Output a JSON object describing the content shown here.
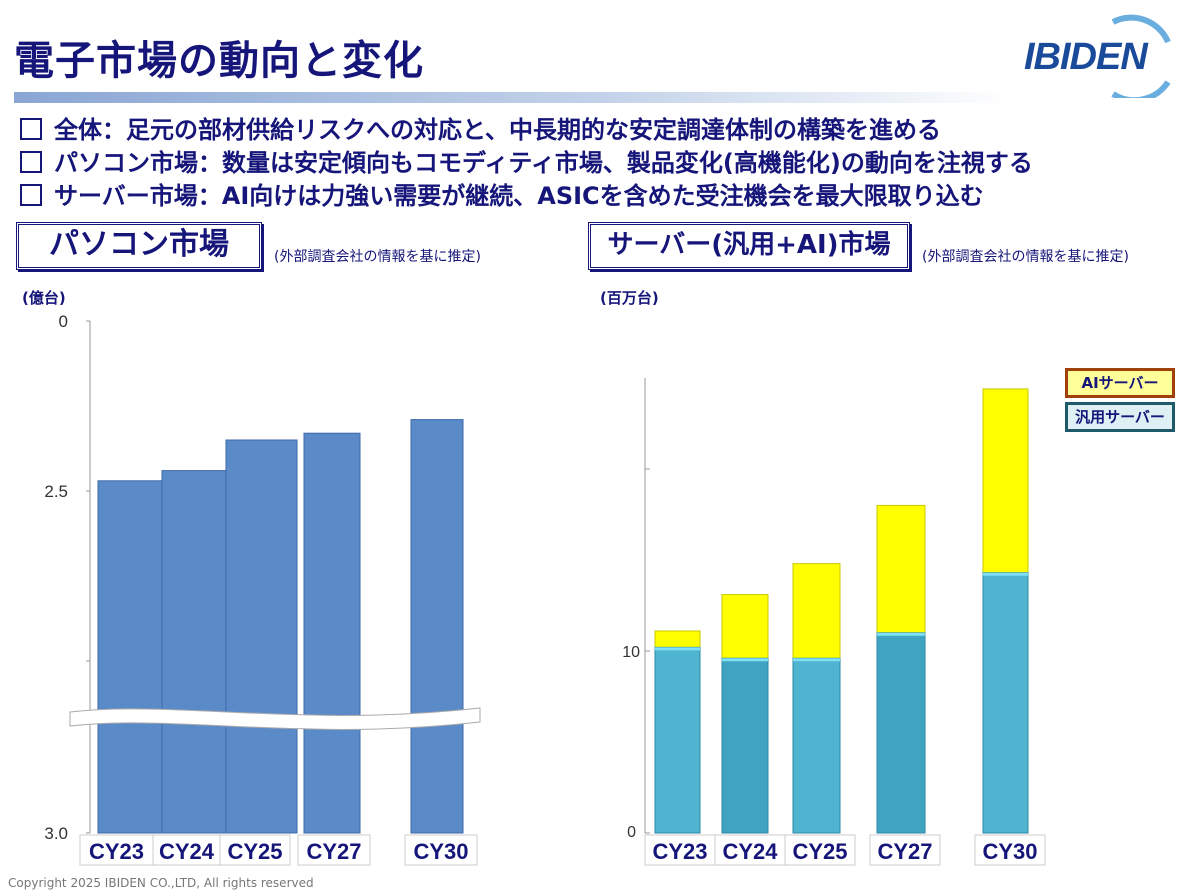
{
  "title": "電子市場の動向と変化",
  "logo": "IBIDEN",
  "bullets": [
    "全体：足元の部材供給リスクへの対応と、中長期的な安定調達体制の構築を進める",
    "パソコン市場：数量は安定傾向もコモディティ市場、製品変化(高機能化)の動向を注視する",
    "サーバー市場：AI向けは力強い需要が継続、ASICを含めた受注機会を最大限取り込む"
  ],
  "sections": {
    "pc": {
      "label": "パソコン市場",
      "note": "(外部調査会社の情報を基に推定)",
      "unit": "(億台)"
    },
    "server": {
      "label": "サーバー(汎用+AI)市場",
      "note": "(外部調査会社の情報を基に推定)",
      "unit": "(百万台)"
    }
  },
  "footer": "Copyright 2025 IBIDEN CO.,LTD, All rights reserved",
  "colors": {
    "navy": "#15157a",
    "pc_bar": "#5b8ac8",
    "generic": "#4fb4cf",
    "generic_dark": "#3fa3c2",
    "ai": "#ffff00"
  },
  "chart_data": [
    {
      "type": "bar",
      "title": "パソコン市場",
      "ylabel": "(億台)",
      "categories": [
        "CY23",
        "CY24",
        "CY25",
        "CY27",
        "CY30"
      ],
      "values": [
        2.53,
        2.56,
        2.65,
        2.67,
        2.71
      ],
      "yticks": [
        "0",
        "2.5",
        "3.0"
      ],
      "ylim": [
        0,
        3.0
      ],
      "axis_break": true
    },
    {
      "type": "bar",
      "stacked": true,
      "title": "サーバー(汎用+AI)市場",
      "ylabel": "(百万台)",
      "categories": [
        "CY23",
        "CY24",
        "CY25",
        "CY27",
        "CY30"
      ],
      "series": [
        {
          "name": "汎用サーバー",
          "values": [
            10.2,
            9.6,
            9.6,
            11.0,
            14.3
          ]
        },
        {
          "name": "AIサーバー",
          "values": [
            0.9,
            3.5,
            5.2,
            7.0,
            10.1
          ]
        }
      ],
      "yticks": [
        "0",
        "10"
      ],
      "ylim": [
        0,
        25
      ],
      "legend": "top-right"
    }
  ]
}
